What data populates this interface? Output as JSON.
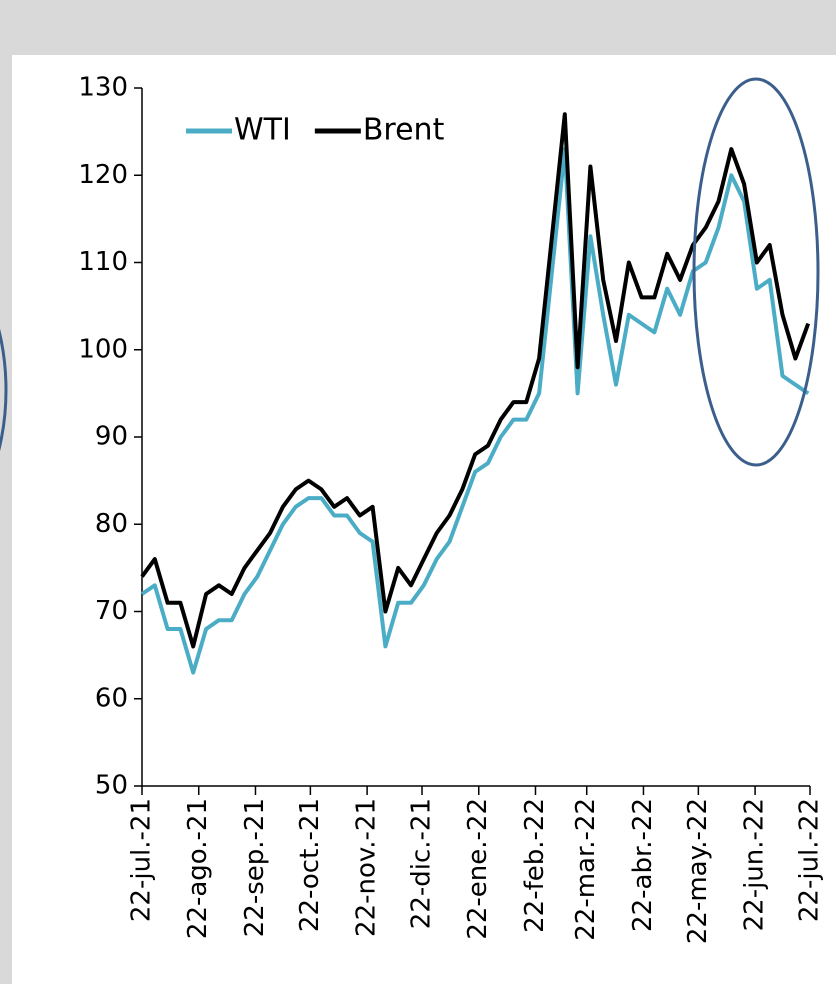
{
  "chart_data": {
    "type": "line",
    "x": [
      "2021-07-22",
      "2021-07-29",
      "2021-08-05",
      "2021-08-12",
      "2021-08-19",
      "2021-08-26",
      "2021-09-02",
      "2021-09-09",
      "2021-09-16",
      "2021-09-23",
      "2021-09-30",
      "2021-10-07",
      "2021-10-14",
      "2021-10-21",
      "2021-10-28",
      "2021-11-04",
      "2021-11-11",
      "2021-11-18",
      "2021-11-25",
      "2021-12-02",
      "2021-12-09",
      "2021-12-16",
      "2021-12-23",
      "2021-12-30",
      "2022-01-06",
      "2022-01-13",
      "2022-01-20",
      "2022-01-27",
      "2022-02-03",
      "2022-02-10",
      "2022-02-17",
      "2022-02-24",
      "2022-03-03",
      "2022-03-10",
      "2022-03-17",
      "2022-03-24",
      "2022-03-31",
      "2022-04-07",
      "2022-04-14",
      "2022-04-21",
      "2022-04-28",
      "2022-05-05",
      "2022-05-12",
      "2022-05-19",
      "2022-05-26",
      "2022-06-02",
      "2022-06-09",
      "2022-06-16",
      "2022-06-23",
      "2022-06-30",
      "2022-07-07",
      "2022-07-14",
      "2022-07-21"
    ],
    "series": [
      {
        "name": "WTI",
        "color": "#4bacc6",
        "values": [
          72,
          73,
          68,
          68,
          63,
          68,
          69,
          69,
          72,
          74,
          77,
          80,
          82,
          83,
          83,
          81,
          81,
          79,
          78,
          66,
          71,
          71,
          73,
          76,
          78,
          82,
          86,
          87,
          90,
          92,
          92,
          95,
          109,
          123,
          95,
          113,
          104,
          96,
          104,
          103,
          102,
          107,
          104,
          109,
          110,
          114,
          120,
          117,
          107,
          108,
          97,
          96,
          95
        ]
      },
      {
        "name": "Brent",
        "color": "#000000",
        "values": [
          74,
          76,
          71,
          71,
          66,
          72,
          73,
          72,
          75,
          77,
          79,
          82,
          84,
          85,
          84,
          82,
          83,
          81,
          82,
          70,
          75,
          73,
          76,
          79,
          81,
          84,
          88,
          89,
          92,
          94,
          94,
          99,
          113,
          127,
          98,
          121,
          108,
          101,
          110,
          106,
          106,
          111,
          108,
          112,
          114,
          117,
          123,
          119,
          110,
          112,
          104,
          99,
          103
        ]
      }
    ],
    "xlim": [
      "2021-07-22",
      "2022-07-22"
    ],
    "xticks": [
      {
        "value": "2021-07-22",
        "label": "22-jul.-21"
      },
      {
        "value": "2021-08-22",
        "label": "22-ago.-21"
      },
      {
        "value": "2021-09-22",
        "label": "22-sep.-21"
      },
      {
        "value": "2021-10-22",
        "label": "22-oct.-21"
      },
      {
        "value": "2021-11-22",
        "label": "22-nov.-21"
      },
      {
        "value": "2021-12-22",
        "label": "22-dic.-21"
      },
      {
        "value": "2022-01-22",
        "label": "22-ene.-22"
      },
      {
        "value": "2022-02-22",
        "label": "22-feb.-22"
      },
      {
        "value": "2022-03-22",
        "label": "22-mar.-22"
      },
      {
        "value": "2022-04-22",
        "label": "22-abr.-22"
      },
      {
        "value": "2022-05-22",
        "label": "22-may.-22"
      },
      {
        "value": "2022-06-22",
        "label": "22-jun.-22"
      },
      {
        "value": "2022-07-22",
        "label": "22-jul.-22"
      }
    ],
    "ylim": [
      50,
      130
    ],
    "yticks": [
      50,
      60,
      70,
      80,
      90,
      100,
      110,
      120,
      130
    ],
    "legend": "top-left"
  }
}
